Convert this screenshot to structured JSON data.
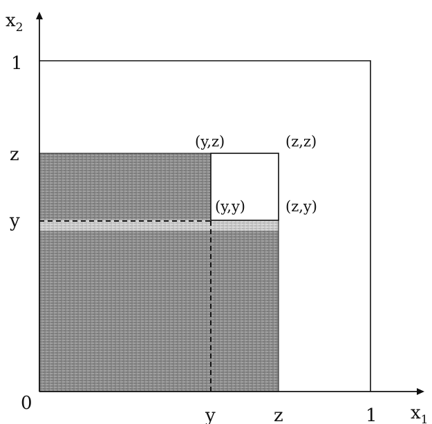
{
  "axes": {
    "x_label": "x",
    "x_subscript": "1",
    "y_label": "x",
    "y_subscript": "2"
  },
  "ticks": {
    "origin": "0",
    "x": [
      "y",
      "z",
      "1"
    ],
    "y": [
      "y",
      "z",
      "1"
    ]
  },
  "points": {
    "yz": "(y,z)",
    "zz": "(z,z)",
    "yy": "(y,y)",
    "zy": "(z,y)"
  },
  "colors": {
    "shaded_region": "#8c8c8c",
    "strip": "#c8c8c8",
    "lines": "#111111"
  }
}
